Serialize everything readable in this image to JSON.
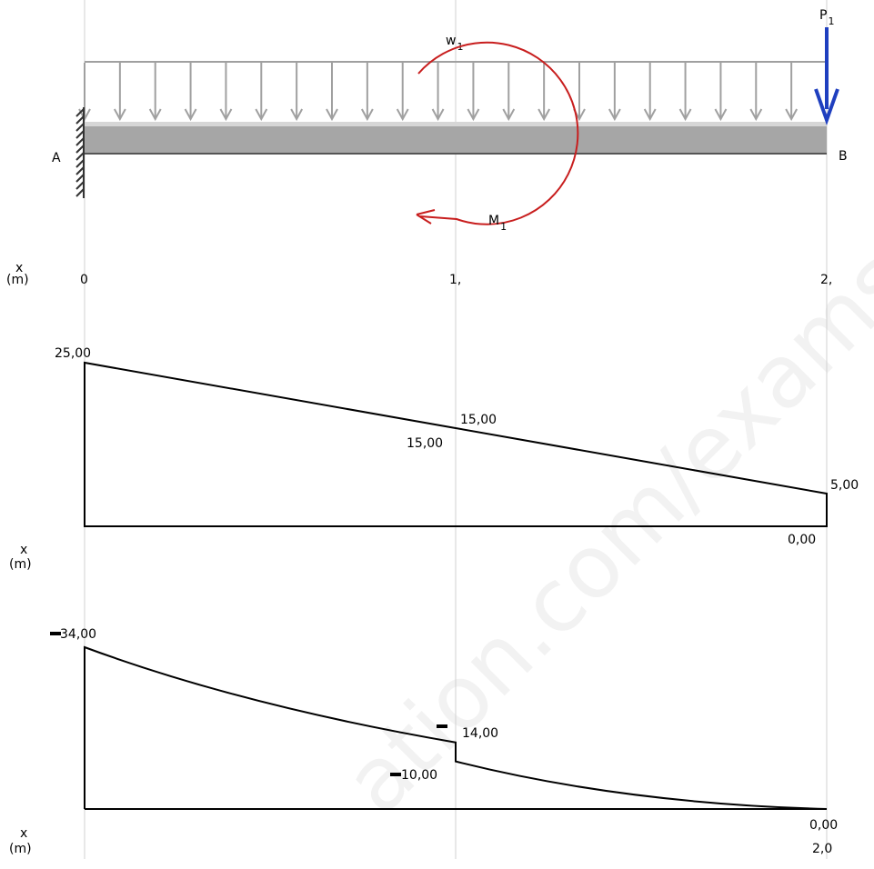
{
  "watermark": "ation.com/exams",
  "beam": {
    "support_left_label": "A",
    "end_right_label": "B",
    "distributed_load": {
      "name": "w",
      "subscript": "1"
    },
    "moment": {
      "name": "M",
      "subscript": "1"
    },
    "point_load": {
      "name": "P",
      "subscript": "1",
      "color": "#1f3fbf"
    },
    "moment_color": "#c81e1e",
    "beam_color": "#a6a6a6",
    "load_color": "#a0a0a0"
  },
  "x_axis": {
    "label_line1": "x",
    "label_line2": "(m)",
    "ticks": [
      "0",
      "1,",
      "2,"
    ]
  },
  "shear": {
    "axis_label_line1": "x",
    "axis_label_line2": "(m)",
    "labels": {
      "start": "25,00",
      "mid_right": "15,00",
      "mid_left": "15,00",
      "end": "5,00",
      "zero": "0,00"
    },
    "points": [
      {
        "x": 0,
        "v": 25
      },
      {
        "x": 1,
        "v": 15
      },
      {
        "x": 2,
        "v": 5
      }
    ]
  },
  "moment_diagram": {
    "axis_label_line1": "x",
    "axis_label_line2": "(m)",
    "end_tick": "2,0",
    "labels": {
      "start": "34,00",
      "mid_left": "14,00",
      "mid_right": "10,00",
      "zero": "0,00"
    },
    "segments": [
      {
        "from": {
          "x": 0,
          "m": -34
        },
        "to": {
          "x": 1,
          "m": -14
        }
      },
      {
        "from": {
          "x": 1,
          "m": -10
        },
        "to": {
          "x": 2,
          "m": 0
        }
      }
    ]
  }
}
